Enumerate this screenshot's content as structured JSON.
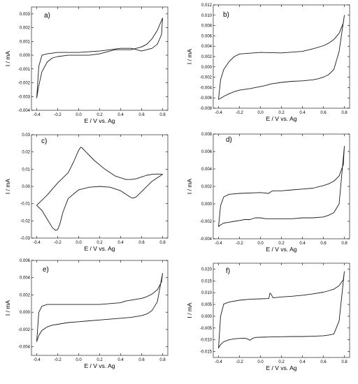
{
  "chart_data": [
    {
      "type": "line",
      "panel_label": "a)",
      "xlabel": "E / V vs. Ag",
      "ylabel": "I / mA",
      "xlim": [
        -0.45,
        0.85
      ],
      "ylim": [
        -0.004,
        0.0035
      ],
      "xticks": [
        -0.4,
        -0.2,
        0.0,
        0.2,
        0.4,
        0.6,
        0.8
      ],
      "xtick_labels": [
        "-0.4",
        "-0.2",
        "0.0",
        "0.2",
        "0.4",
        "0.6",
        "0.8"
      ],
      "yticks": [
        -0.004,
        -0.003,
        -0.002,
        -0.001,
        0.0,
        0.001,
        0.002,
        0.003
      ],
      "ytick_labels": [
        "-0.004",
        "-0.003",
        "-0.002",
        "-0.001",
        "0.000",
        "0.001",
        "0.002",
        "0.003"
      ],
      "series": [
        {
          "x": [
            -0.4,
            -0.38,
            -0.35,
            -0.3,
            -0.25,
            -0.2,
            -0.1,
            0.0,
            0.1,
            0.2,
            0.25,
            0.3,
            0.35,
            0.4,
            0.45,
            0.5,
            0.55,
            0.6,
            0.65,
            0.7,
            0.75,
            0.8,
            0.79,
            0.75,
            0.7,
            0.6,
            0.5,
            0.4,
            0.3,
            0.2,
            0.0,
            -0.2,
            -0.3,
            -0.35,
            -0.38,
            -0.4
          ],
          "y": [
            -0.0031,
            -0.0022,
            -0.0012,
            -0.0005,
            -0.0002,
            -0.0001,
            0.0,
            0.0,
            0.0,
            0.0001,
            0.0002,
            0.0003,
            0.0004,
            0.0004,
            0.0004,
            0.0004,
            0.0005,
            0.0006,
            0.0008,
            0.0012,
            0.0018,
            0.0027,
            0.0015,
            0.0008,
            0.0005,
            0.0003,
            0.0005,
            0.0005,
            0.0004,
            0.0003,
            0.0002,
            0.0002,
            0.0001,
            0.0,
            -0.0008,
            -0.0031
          ]
        }
      ]
    },
    {
      "type": "line",
      "panel_label": "b)",
      "xlabel": "E / V vs. Ag",
      "ylabel": "I / mA",
      "xlim": [
        -0.45,
        0.85
      ],
      "ylim": [
        -0.008,
        0.012
      ],
      "xticks": [
        -0.4,
        -0.2,
        0.0,
        0.2,
        0.4,
        0.6,
        0.8
      ],
      "xtick_labels": [
        "-0.4",
        "-0.2",
        "0.0",
        "0.2",
        "0.4",
        "0.6",
        "0.8"
      ],
      "yticks": [
        -0.008,
        -0.006,
        -0.004,
        -0.002,
        0.0,
        0.002,
        0.004,
        0.006,
        0.008,
        0.01,
        0.012
      ],
      "ytick_labels": [
        "-0.008",
        "-0.006",
        "-0.004",
        "-0.002",
        "0.000",
        "0.002",
        "0.004",
        "0.006",
        "0.008",
        "0.010",
        "0.012"
      ],
      "series": [
        {
          "x": [
            -0.4,
            -0.38,
            -0.35,
            -0.3,
            -0.25,
            -0.2,
            -0.1,
            0.0,
            0.05,
            0.1,
            0.2,
            0.3,
            0.4,
            0.5,
            0.55,
            0.6,
            0.65,
            0.7,
            0.75,
            0.8,
            0.79,
            0.75,
            0.7,
            0.65,
            0.6,
            0.5,
            0.4,
            0.2,
            0.0,
            -0.2,
            -0.25,
            -0.3,
            -0.35,
            -0.38,
            -0.4
          ],
          "y": [
            -0.0063,
            -0.0061,
            -0.0057,
            -0.0052,
            -0.0048,
            -0.0045,
            -0.0042,
            -0.0038,
            -0.0036,
            -0.0033,
            -0.003,
            -0.0028,
            -0.0027,
            -0.0025,
            -0.0023,
            -0.002,
            -0.0015,
            -0.0005,
            0.003,
            0.01,
            0.0085,
            0.0065,
            0.0053,
            0.0046,
            0.0041,
            0.0035,
            0.003,
            0.0027,
            0.0028,
            0.0025,
            0.002,
            0.001,
            -0.0005,
            -0.0025,
            -0.0063
          ]
        }
      ]
    },
    {
      "type": "line",
      "panel_label": "c)",
      "xlabel": "E / V vs. Ag",
      "ylabel": "I / mA",
      "xlim": [
        -0.45,
        0.85
      ],
      "ylim": [
        -0.03,
        0.03
      ],
      "xticks": [
        -0.4,
        -0.2,
        0.0,
        0.2,
        0.4,
        0.6,
        0.8
      ],
      "xtick_labels": [
        "-0.4",
        "-0.2",
        "0.0",
        "0.2",
        "0.4",
        "0.6",
        "0.8"
      ],
      "yticks": [
        -0.03,
        -0.02,
        -0.01,
        0.0,
        0.01,
        0.02,
        0.03
      ],
      "ytick_labels": [
        "-0.03",
        "-0.02",
        "-0.01",
        "0.00",
        "0.01",
        "0.02",
        "0.03"
      ],
      "series": [
        {
          "x": [
            -0.4,
            -0.35,
            -0.3,
            -0.25,
            -0.22,
            -0.2,
            -0.18,
            -0.15,
            -0.1,
            0.0,
            0.1,
            0.2,
            0.3,
            0.4,
            0.45,
            0.5,
            0.52,
            0.55,
            0.6,
            0.7,
            0.8,
            0.8,
            0.75,
            0.7,
            0.65,
            0.6,
            0.55,
            0.5,
            0.45,
            0.35,
            0.25,
            0.15,
            0.07,
            0.03,
            0.02,
            0.0,
            -0.05,
            -0.1,
            -0.2,
            -0.3,
            -0.4
          ],
          "y": [
            -0.011,
            -0.014,
            -0.019,
            -0.024,
            -0.0255,
            -0.025,
            -0.022,
            -0.015,
            -0.007,
            -0.002,
            -0.0005,
            0.0,
            -0.0005,
            -0.0025,
            -0.0045,
            -0.0065,
            -0.0068,
            -0.006,
            -0.003,
            0.003,
            0.007,
            0.007,
            0.0072,
            0.007,
            0.0065,
            0.0055,
            0.0045,
            0.004,
            0.004,
            0.006,
            0.01,
            0.015,
            0.02,
            0.0225,
            0.0228,
            0.021,
            0.014,
            0.008,
            0.002,
            -0.005,
            -0.011
          ]
        }
      ]
    },
    {
      "type": "line",
      "panel_label": "d)",
      "xlabel": "E / V vs. Ag",
      "ylabel": "I / mA",
      "xlim": [
        -0.45,
        0.85
      ],
      "ylim": [
        -0.004,
        0.008
      ],
      "xticks": [
        -0.4,
        -0.2,
        0.0,
        0.2,
        0.4,
        0.6,
        0.8
      ],
      "xtick_labels": [
        "-0.4",
        "-0.2",
        "0.0",
        "0.2",
        "0.4",
        "0.6",
        "0.8"
      ],
      "yticks": [
        -0.004,
        -0.002,
        0.0,
        0.002,
        0.004,
        0.006,
        0.008
      ],
      "ytick_labels": [
        "-0.004",
        "-0.002",
        "0.000",
        "0.002",
        "0.004",
        "0.006",
        "0.008"
      ],
      "series": [
        {
          "x": [
            -0.4,
            -0.38,
            -0.35,
            -0.3,
            -0.25,
            -0.2,
            -0.15,
            -0.1,
            -0.05,
            0.0,
            0.05,
            0.1,
            0.2,
            0.3,
            0.4,
            0.5,
            0.6,
            0.65,
            0.7,
            0.75,
            0.8,
            0.79,
            0.75,
            0.7,
            0.65,
            0.6,
            0.5,
            0.4,
            0.3,
            0.2,
            0.12,
            0.1,
            0.08,
            0.0,
            -0.2,
            -0.3,
            -0.35,
            -0.38,
            -0.4
          ],
          "y": [
            -0.0026,
            -0.0024,
            -0.0022,
            -0.0021,
            -0.002,
            -0.0019,
            -0.0018,
            -0.0018,
            -0.0016,
            -0.0016,
            -0.0017,
            -0.0017,
            -0.0017,
            -0.0017,
            -0.0016,
            -0.0016,
            -0.0015,
            -0.0013,
            -0.001,
            0.0,
            0.0066,
            0.0045,
            0.0032,
            0.0026,
            0.0023,
            0.0021,
            0.0018,
            0.0017,
            0.0016,
            0.0015,
            0.0015,
            0.0014,
            0.0012,
            0.0013,
            0.0012,
            0.0011,
            0.0008,
            -0.0002,
            -0.0026
          ]
        }
      ]
    },
    {
      "type": "line",
      "panel_label": "e)",
      "xlabel": "E / V vs. Ag",
      "ylabel": "I / mA",
      "xlim": [
        -0.45,
        0.85
      ],
      "ylim": [
        -0.005,
        0.006
      ],
      "xticks": [
        -0.4,
        -0.2,
        0.0,
        0.2,
        0.4,
        0.6,
        0.8
      ],
      "xtick_labels": [
        "-0.4",
        "-0.2",
        "0.0",
        "0.2",
        "0.4",
        "0.6",
        "0.8"
      ],
      "yticks": [
        -0.004,
        -0.002,
        0.0,
        0.002,
        0.004,
        0.006
      ],
      "ytick_labels": [
        "-0.004",
        "-0.002",
        "0.000",
        "0.002",
        "0.004",
        "0.006"
      ],
      "series": [
        {
          "x": [
            -0.4,
            -0.38,
            -0.35,
            -0.3,
            -0.25,
            -0.2,
            -0.1,
            0.0,
            0.1,
            0.2,
            0.3,
            0.4,
            0.5,
            0.6,
            0.65,
            0.7,
            0.75,
            0.8,
            0.79,
            0.75,
            0.7,
            0.65,
            0.6,
            0.55,
            0.5,
            0.45,
            0.4,
            0.3,
            0.2,
            0.0,
            -0.2,
            -0.3,
            -0.35,
            -0.38,
            -0.4
          ],
          "y": [
            -0.0034,
            -0.0027,
            -0.0021,
            -0.0017,
            -0.0015,
            -0.0014,
            -0.0012,
            -0.0011,
            -0.001,
            -0.0009,
            -0.0008,
            -0.0007,
            -0.0006,
            -0.0004,
            -0.0002,
            0.0002,
            0.0012,
            0.0045,
            0.0035,
            0.0026,
            0.0021,
            0.0018,
            0.0016,
            0.0015,
            0.0014,
            0.0013,
            0.0011,
            0.001,
            0.0009,
            0.0009,
            0.0009,
            0.0009,
            0.0007,
            0.0,
            -0.0034
          ]
        }
      ]
    },
    {
      "type": "line",
      "panel_label": "f)",
      "xlabel": "E / V vs. Ag",
      "ylabel": "I / mA",
      "xlim": [
        -0.45,
        0.85
      ],
      "ylim": [
        -0.0175,
        0.0225
      ],
      "xticks": [
        -0.4,
        -0.2,
        0.0,
        0.2,
        0.4,
        0.6,
        0.8
      ],
      "xtick_labels": [
        "-0.4",
        "-0.2",
        "0.0",
        "0.2",
        "0.4",
        "0.6",
        "0.8"
      ],
      "yticks": [
        -0.015,
        -0.01,
        -0.005,
        0.0,
        0.005,
        0.01,
        0.015,
        0.02
      ],
      "ytick_labels": [
        "-0.015",
        "-0.010",
        "-0.005",
        "0.000",
        "0.005",
        "0.010",
        "0.015",
        "0.020"
      ],
      "series": [
        {
          "x": [
            -0.4,
            -0.38,
            -0.35,
            -0.3,
            -0.25,
            -0.2,
            -0.15,
            -0.12,
            -0.1,
            -0.08,
            -0.05,
            0.0,
            0.1,
            0.2,
            0.3,
            0.4,
            0.5,
            0.6,
            0.65,
            0.7,
            0.75,
            0.8,
            0.79,
            0.75,
            0.7,
            0.65,
            0.6,
            0.5,
            0.4,
            0.3,
            0.2,
            0.12,
            0.1,
            0.09,
            0.08,
            0.0,
            -0.1,
            -0.2,
            -0.3,
            -0.35,
            -0.38,
            -0.4
          ],
          "y": [
            -0.0135,
            -0.012,
            -0.0108,
            -0.01,
            -0.0096,
            -0.0094,
            -0.0093,
            -0.0097,
            -0.0102,
            -0.0095,
            -0.009,
            -0.0089,
            -0.0088,
            -0.0087,
            -0.0086,
            -0.0086,
            -0.0085,
            -0.0083,
            -0.008,
            -0.0075,
            -0.002,
            0.019,
            0.0155,
            0.013,
            0.0115,
            0.0108,
            0.0102,
            0.0095,
            0.0089,
            0.0085,
            0.0082,
            0.0078,
            0.0095,
            0.0098,
            0.0075,
            0.0074,
            0.0072,
            0.0068,
            0.006,
            0.0052,
            0.0,
            -0.0135
          ]
        }
      ]
    }
  ]
}
